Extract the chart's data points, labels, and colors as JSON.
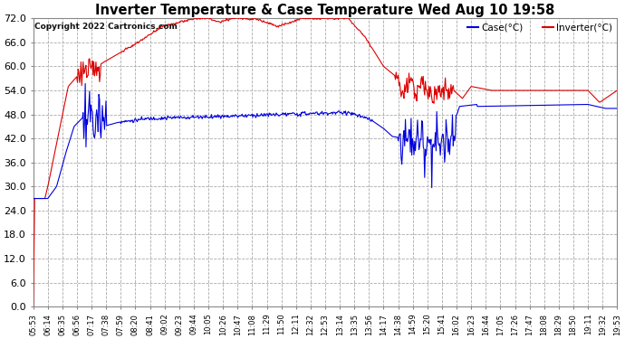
{
  "title": "Inverter Temperature & Case Temperature Wed Aug 10 19:58",
  "copyright": "Copyright 2022 Cartronics.com",
  "legend_case": "Case(°C)",
  "legend_inverter": "Inverter(°C)",
  "case_color": "#0000dd",
  "inverter_color": "#dd0000",
  "bg_color": "#ffffff",
  "plot_bg_color": "#ffffff",
  "grid_color": "#aaaaaa",
  "ylim": [
    0,
    72
  ],
  "yticks": [
    0.0,
    6.0,
    12.0,
    18.0,
    24.0,
    30.0,
    36.0,
    42.0,
    48.0,
    54.0,
    60.0,
    66.0,
    72.0
  ],
  "xtick_labels": [
    "05:53",
    "06:14",
    "06:35",
    "06:56",
    "07:17",
    "07:38",
    "07:59",
    "08:20",
    "08:41",
    "09:02",
    "09:23",
    "09:44",
    "10:05",
    "10:26",
    "10:47",
    "11:08",
    "11:29",
    "11:50",
    "12:11",
    "12:32",
    "12:53",
    "13:14",
    "13:35",
    "13:56",
    "14:17",
    "14:38",
    "14:59",
    "15:20",
    "15:41",
    "16:02",
    "16:23",
    "16:44",
    "17:05",
    "17:26",
    "17:47",
    "18:08",
    "18:29",
    "18:50",
    "19:11",
    "19:32",
    "19:53"
  ],
  "n_points": 820
}
